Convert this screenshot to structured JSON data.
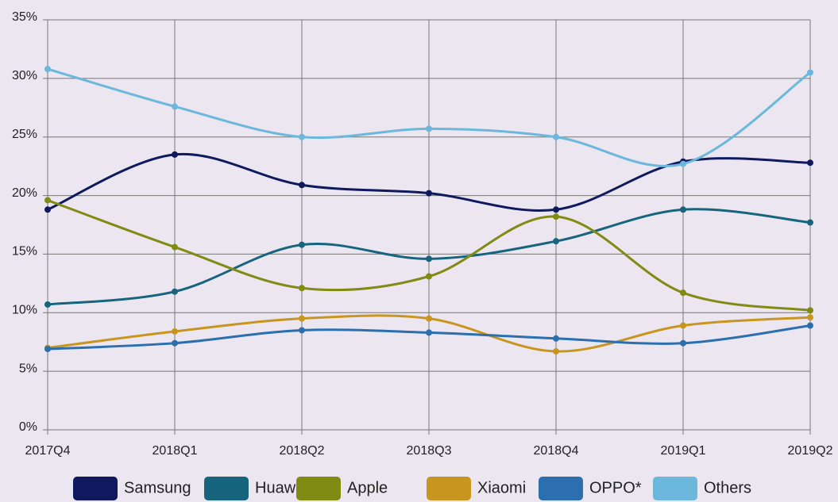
{
  "chart_data": {
    "type": "line",
    "categories": [
      "2017Q4",
      "2018Q1",
      "2018Q2",
      "2018Q3",
      "2018Q4",
      "2019Q1",
      "2019Q2"
    ],
    "series": [
      {
        "name": "Samsung",
        "color": "#0f1a5e",
        "values": [
          18.8,
          23.5,
          20.9,
          20.2,
          18.8,
          22.9,
          22.8
        ]
      },
      {
        "name": "Huawei",
        "color": "#17647e",
        "values": [
          10.7,
          11.8,
          15.8,
          14.6,
          16.1,
          18.8,
          17.7
        ]
      },
      {
        "name": "Apple",
        "color": "#7f8b12",
        "values": [
          19.6,
          15.6,
          12.1,
          13.1,
          18.2,
          11.7,
          10.2
        ]
      },
      {
        "name": "Xiaomi",
        "color": "#c8961e",
        "values": [
          7.0,
          8.4,
          9.5,
          9.5,
          6.7,
          8.9,
          9.6
        ]
      },
      {
        "name": "OPPO*",
        "color": "#2c6fae",
        "values": [
          6.9,
          7.4,
          8.5,
          8.3,
          7.8,
          7.4,
          8.9
        ]
      },
      {
        "name": "Others",
        "color": "#6bb8dc",
        "values": [
          30.8,
          27.6,
          25.0,
          25.7,
          25.0,
          22.7,
          30.5
        ]
      }
    ],
    "ylim": [
      0,
      35
    ],
    "yticks": [
      {
        "value": 0,
        "label": "0%"
      },
      {
        "value": 5,
        "label": "5%"
      },
      {
        "value": 10,
        "label": "10%"
      },
      {
        "value": 15,
        "label": "15%"
      },
      {
        "value": 20,
        "label": "20%"
      },
      {
        "value": 25,
        "label": "25%"
      },
      {
        "value": 30,
        "label": "30%"
      },
      {
        "value": 35,
        "label": "35%"
      }
    ],
    "grid": true
  }
}
